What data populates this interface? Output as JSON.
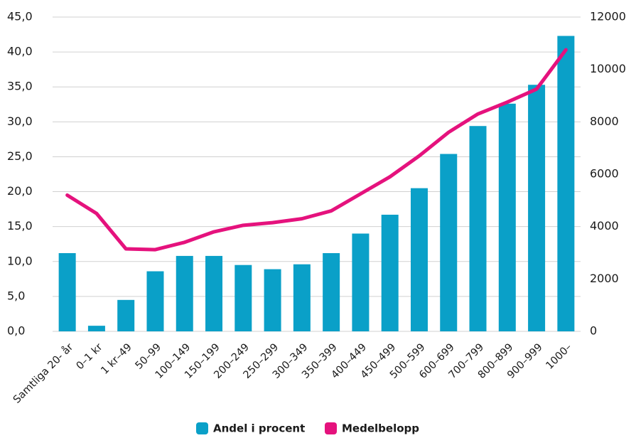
{
  "chart_data": {
    "type": "bar_line",
    "categories": [
      "Samtliga 20- år",
      "0–1 kr",
      "1 kr–49",
      "50–99",
      "100–149",
      "150–199",
      "200–249",
      "250–299",
      "300–349",
      "350–399",
      "400–449",
      "450–499",
      "500–599",
      "600–699",
      "700–799",
      "800–899",
      "900–999",
      "1000–"
    ],
    "series": [
      {
        "name": "Andel i procent",
        "color": "#0aa0c8",
        "kind": "bar",
        "values": [
          11.2,
          0.8,
          4.5,
          8.6,
          10.8,
          10.8,
          9.5,
          8.9,
          9.6,
          11.2,
          14.0,
          16.7,
          20.5,
          25.4,
          29.4,
          32.6,
          35.3,
          42.3
        ]
      },
      {
        "name": "Medelbelopp",
        "color": "#e5127d",
        "kind": "line",
        "axis": "y2",
        "values": [
          5200,
          4500,
          3150,
          3120,
          3400,
          3800,
          4050,
          4150,
          4300,
          4600,
          5250,
          5900,
          6700,
          7600,
          8300,
          8750,
          9250,
          10750
        ]
      }
    ],
    "ylim": [
      0,
      45
    ],
    "yticks": [
      {
        "value": 0,
        "label": "0,0"
      },
      {
        "value": 5,
        "label": "5,0"
      },
      {
        "value": 10,
        "label": "10,0"
      },
      {
        "value": 15,
        "label": "15,0"
      },
      {
        "value": 20,
        "label": "20,0"
      },
      {
        "value": 25,
        "label": "25,0"
      },
      {
        "value": 30,
        "label": "30,0"
      },
      {
        "value": 35,
        "label": "35,0"
      },
      {
        "value": 40,
        "label": "40,0"
      },
      {
        "value": 45,
        "label": "45,0"
      }
    ],
    "y2lim": [
      0,
      12000
    ],
    "y2ticks": [
      0,
      2000,
      4000,
      6000,
      8000,
      10000,
      12000
    ],
    "grid": true,
    "legend": "bottom"
  }
}
